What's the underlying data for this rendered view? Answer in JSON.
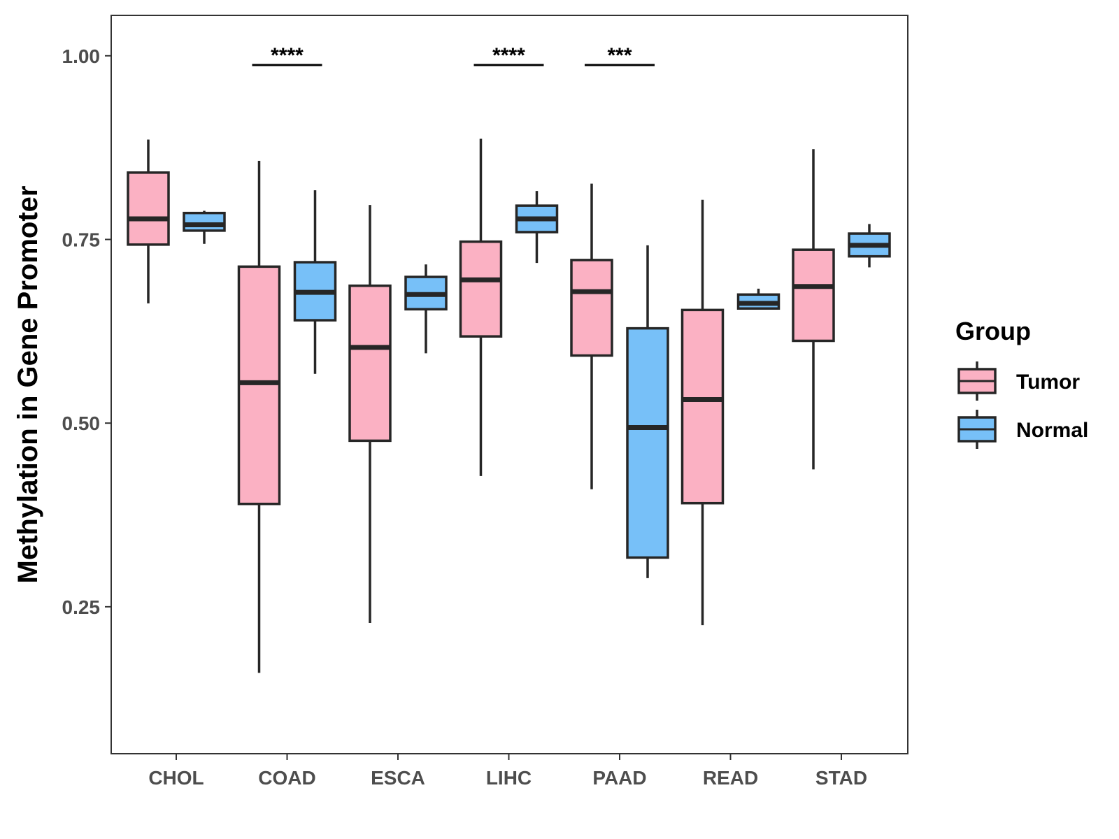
{
  "chart_data": {
    "type": "boxplot",
    "title": "",
    "xlabel": "",
    "ylabel": "Methylation in Gene Promoter",
    "ylim": [
      0.05,
      1.055
    ],
    "yticks": [
      {
        "value": 0.25,
        "label": "0.25"
      },
      {
        "value": 0.5,
        "label": "0.50"
      },
      {
        "value": 0.75,
        "label": "0.75"
      },
      {
        "value": 1.0,
        "label": "1.00"
      }
    ],
    "categories": [
      "CHOL",
      "COAD",
      "ESCA",
      "LIHC",
      "PAAD",
      "READ",
      "STAD"
    ],
    "legend": {
      "title": "Group",
      "position": "right",
      "entries": [
        {
          "name": "Tumor",
          "color": "#FBB1C3"
        },
        {
          "name": "Normal",
          "color": "#77C0F8"
        }
      ]
    },
    "series": [
      {
        "name": "Tumor",
        "color": "#FBB1C3",
        "boxes": [
          {
            "category": "CHOL",
            "min": 0.663,
            "q1": 0.743,
            "median": 0.778,
            "q3": 0.841,
            "max": 0.886
          },
          {
            "category": "COAD",
            "min": 0.16,
            "q1": 0.39,
            "median": 0.555,
            "q3": 0.713,
            "max": 0.857
          },
          {
            "category": "ESCA",
            "min": 0.228,
            "q1": 0.476,
            "median": 0.603,
            "q3": 0.687,
            "max": 0.797
          },
          {
            "category": "LIHC",
            "min": 0.428,
            "q1": 0.618,
            "median": 0.695,
            "q3": 0.747,
            "max": 0.887
          },
          {
            "category": "PAAD",
            "min": 0.41,
            "q1": 0.592,
            "median": 0.679,
            "q3": 0.722,
            "max": 0.826
          },
          {
            "category": "READ",
            "min": 0.225,
            "q1": 0.391,
            "median": 0.532,
            "q3": 0.654,
            "max": 0.804
          },
          {
            "category": "STAD",
            "min": 0.437,
            "q1": 0.612,
            "median": 0.686,
            "q3": 0.736,
            "max": 0.873
          }
        ]
      },
      {
        "name": "Normal",
        "color": "#77C0F8",
        "boxes": [
          {
            "category": "CHOL",
            "min": 0.744,
            "q1": 0.762,
            "median": 0.77,
            "q3": 0.786,
            "max": 0.789
          },
          {
            "category": "COAD",
            "min": 0.567,
            "q1": 0.64,
            "median": 0.678,
            "q3": 0.719,
            "max": 0.817
          },
          {
            "category": "ESCA",
            "min": 0.595,
            "q1": 0.655,
            "median": 0.675,
            "q3": 0.699,
            "max": 0.716
          },
          {
            "category": "LIHC",
            "min": 0.718,
            "q1": 0.76,
            "median": 0.778,
            "q3": 0.796,
            "max": 0.816
          },
          {
            "category": "PAAD",
            "min": 0.289,
            "q1": 0.317,
            "median": 0.494,
            "q3": 0.629,
            "max": 0.742
          },
          {
            "category": "READ",
            "min": 0.655,
            "q1": 0.656,
            "median": 0.663,
            "q3": 0.675,
            "max": 0.683
          },
          {
            "category": "STAD",
            "min": 0.712,
            "q1": 0.727,
            "median": 0.742,
            "q3": 0.758,
            "max": 0.771
          }
        ]
      }
    ],
    "annotations": [
      {
        "category": "COAD",
        "label": "****"
      },
      {
        "category": "LIHC",
        "label": "****"
      },
      {
        "category": "PAAD",
        "label": "***"
      }
    ]
  }
}
